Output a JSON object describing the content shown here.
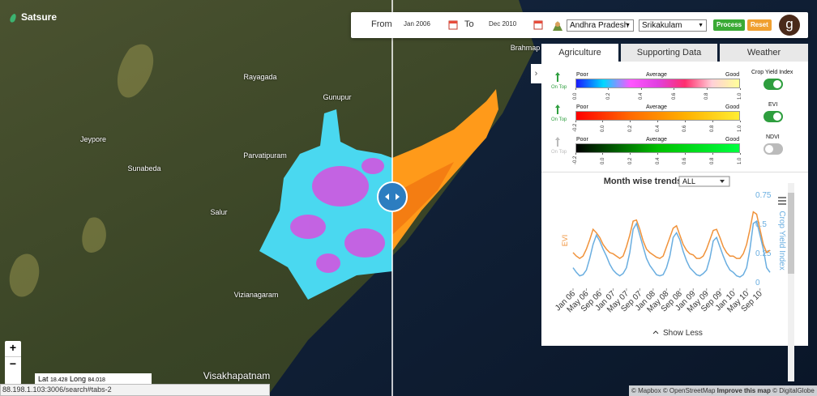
{
  "header": {
    "logo": "Satsure"
  },
  "toolbar": {
    "from_label": "From",
    "from_date": "Jan 2006",
    "to_label": "To",
    "to_date": "Dec 2010",
    "state": "Andhra Pradesh",
    "district": "Srikakulam",
    "process": "Process",
    "reset": "Reset",
    "avatar": "g"
  },
  "map": {
    "places": [
      "Rayagada",
      "Gunupur",
      "Jeypore",
      "Parvatipuram",
      "Sunabeda",
      "Salur",
      "Vizianagaram",
      "Visakhapatnam",
      "Brahmap"
    ]
  },
  "tabs": [
    "Agriculture",
    "Supporting Data",
    "Weather"
  ],
  "legends": [
    {
      "on_top": "On Top",
      "poor": "Poor",
      "average": "Average",
      "good": "Good",
      "toggle_label": "Crop Yield Index",
      "enabled": true,
      "colors": [
        "#1a1aff",
        "#00d8ff",
        "#ff55ff",
        "#e040e0",
        "#ff2e6e",
        "#ffd0d8",
        "#ffff99"
      ],
      "lim": [
        0,
        1
      ],
      "ticks": [
        {
          "value": 0,
          "label": "0.0"
        },
        0.2,
        0.4,
        0.6,
        0.8,
        {
          "value": 1,
          "label": "1.0"
        }
      ]
    },
    {
      "on_top": "On Top",
      "poor": "Poor",
      "average": "Average",
      "good": "Good",
      "toggle_label": "EVI",
      "enabled": true,
      "colors": [
        "#ff0000",
        "#ff6a00",
        "#ffb000",
        "#ffee33"
      ],
      "lim": [
        -0.2,
        1
      ],
      "ticks": [
        -0.2,
        {
          "value": 0,
          "label": "0.0"
        },
        0.2,
        0.4,
        0.6,
        0.8,
        {
          "value": 1,
          "label": "1.0"
        }
      ]
    },
    {
      "on_top": "On Top",
      "poor": "Poor",
      "average": "Average",
      "good": "Good",
      "toggle_label": "NDVI",
      "enabled": false,
      "colors": [
        "#000000",
        "#00c000",
        "#00ff40"
      ],
      "lim": [
        -0.2,
        1
      ],
      "ticks": [
        -0.2,
        {
          "value": 0,
          "label": "0.0"
        },
        0.2,
        0.4,
        0.6,
        0.8,
        {
          "value": 1,
          "label": "1.0"
        }
      ]
    }
  ],
  "chart": {
    "type": "line",
    "title": "Month wise trends",
    "filter": "ALL",
    "y_label": "EVI",
    "y2_label": "Crop Yield Index",
    "categories": [
      "Jan 06",
      null,
      null,
      null,
      "May 06",
      null,
      null,
      null,
      "Sep 06",
      null,
      null,
      null,
      "Jan 07",
      null,
      null,
      null,
      "May 07",
      null,
      null,
      null,
      "Sep 07",
      null,
      null,
      null,
      "Jan 08",
      null,
      null,
      null,
      "May 08",
      null,
      null,
      null,
      "Sep 08",
      null,
      null,
      null,
      "Jan 09",
      null,
      null,
      null,
      "May 09",
      null,
      null,
      null,
      "Sep 09",
      null,
      null,
      null,
      "Jan 10",
      null,
      null,
      null,
      "May 10",
      null,
      null,
      null,
      "Sep 10",
      null,
      null,
      null
    ],
    "series": [
      {
        "name": "EVI",
        "color": "#f0923a",
        "values": [
          0.25,
          0.22,
          0.2,
          0.22,
          0.28,
          0.36,
          0.45,
          0.42,
          0.38,
          0.32,
          0.28,
          0.25,
          0.24,
          0.22,
          0.2,
          0.22,
          0.3,
          0.4,
          0.52,
          0.53,
          0.45,
          0.35,
          0.28,
          0.25,
          0.23,
          0.21,
          0.2,
          0.22,
          0.3,
          0.38,
          0.46,
          0.48,
          0.4,
          0.32,
          0.27,
          0.24,
          0.23,
          0.2,
          0.2,
          0.22,
          0.28,
          0.36,
          0.44,
          0.45,
          0.38,
          0.3,
          0.25,
          0.22,
          0.22,
          0.2,
          0.2,
          0.24,
          0.32,
          0.45,
          0.6,
          0.58,
          0.45,
          0.32,
          0.25,
          0.27
        ]
      },
      {
        "name": "Crop Yield Index",
        "color": "#6aaee0",
        "values": [
          0.12,
          0.08,
          0.05,
          0.06,
          0.1,
          0.2,
          0.32,
          0.4,
          0.35,
          0.28,
          0.22,
          0.15,
          0.1,
          0.07,
          0.05,
          0.07,
          0.12,
          0.25,
          0.45,
          0.5,
          0.4,
          0.3,
          0.2,
          0.14,
          0.1,
          0.06,
          0.05,
          0.06,
          0.12,
          0.22,
          0.38,
          0.42,
          0.36,
          0.26,
          0.18,
          0.12,
          0.09,
          0.06,
          0.05,
          0.07,
          0.1,
          0.2,
          0.35,
          0.38,
          0.3,
          0.22,
          0.15,
          0.1,
          0.08,
          0.05,
          0.04,
          0.06,
          0.12,
          0.28,
          0.5,
          0.52,
          0.4,
          0.28,
          0.12,
          0.08
        ]
      }
    ],
    "ylim": [
      -0.05,
      0.82
    ],
    "yticks": [
      0,
      0.25,
      0.5,
      0.75
    ]
  },
  "show_less": "Show Less",
  "zoom": {
    "in": "+",
    "out": "−"
  },
  "coords": {
    "lat_label": "Lat",
    "lat": "18.428",
    "long_label": "Long",
    "long": "84.018"
  },
  "status_url": "88.198.1.103:3006/search#tabs-2",
  "attribution": {
    "mapbox": "© Mapbox",
    "osm": "© OpenStreetMap",
    "improve": "Improve this map",
    "dg": "© DigitalGlobe"
  }
}
